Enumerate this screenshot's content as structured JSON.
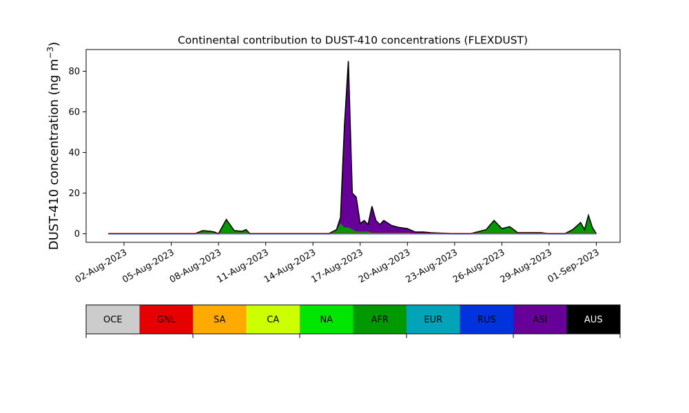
{
  "chart_data": {
    "type": "area",
    "title": "Continental contribution to DUST-410 concentrations (FLEXDUST)",
    "xlabel": "",
    "ylabel": "DUST-410 concentration (ng m⁻³)",
    "ylim": [
      -4.3,
      90
    ],
    "y_ticks": [
      0,
      20,
      40,
      60,
      80
    ],
    "x_ticks": [
      "02-Aug-2023",
      "05-Aug-2023",
      "08-Aug-2023",
      "11-Aug-2023",
      "14-Aug-2023",
      "17-Aug-2023",
      "20-Aug-2023",
      "23-Aug-2023",
      "26-Aug-2023",
      "29-Aug-2023",
      "01-Sep-2023"
    ],
    "stack_order": [
      "AFR",
      "ASI",
      "AUS"
    ],
    "x": [
      "2023-08-01",
      "2023-08-02",
      "2023-08-03",
      "2023-08-04",
      "2023-08-05",
      "2023-08-06",
      "2023-08-06 12:00",
      "2023-08-07",
      "2023-08-07 12:00",
      "2023-08-07 18:00",
      "2023-08-08",
      "2023-08-08 12:00",
      "2023-08-09",
      "2023-08-09 12:00",
      "2023-08-09 18:00",
      "2023-08-10",
      "2023-08-10 12:00",
      "2023-08-11",
      "2023-08-11 12:00",
      "2023-08-12",
      "2023-08-13",
      "2023-08-14",
      "2023-08-15",
      "2023-08-15 12:00",
      "2023-08-15 18:00",
      "2023-08-16",
      "2023-08-16 06:00",
      "2023-08-16 12:00",
      "2023-08-16 18:00",
      "2023-08-17",
      "2023-08-17 06:00",
      "2023-08-17 12:00",
      "2023-08-17 18:00",
      "2023-08-18",
      "2023-08-18 06:00",
      "2023-08-18 12:00",
      "2023-08-19",
      "2023-08-19 12:00",
      "2023-08-20",
      "2023-08-20 12:00",
      "2023-08-21",
      "2023-08-21 12:00",
      "2023-08-22",
      "2023-08-23",
      "2023-08-24",
      "2023-08-25",
      "2023-08-25 12:00",
      "2023-08-26",
      "2023-08-26 12:00",
      "2023-08-27",
      "2023-08-27 12:00",
      "2023-08-28",
      "2023-08-28 12:00",
      "2023-08-29",
      "2023-08-30",
      "2023-08-30 12:00",
      "2023-08-31",
      "2023-08-31 06:00",
      "2023-08-31 12:00",
      "2023-08-31 18:00",
      "2023-09-01"
    ],
    "series": [
      {
        "name": "AFR",
        "color": "#009900",
        "values": [
          0,
          0,
          0,
          0,
          0,
          0,
          0,
          1.3,
          1.0,
          0.6,
          0,
          7,
          1.5,
          1.2,
          2,
          0,
          0,
          0,
          0,
          0,
          0,
          0,
          0,
          1.5,
          5,
          3,
          3,
          2,
          1,
          1,
          1,
          1,
          0.5,
          0.5,
          0.5,
          0.5,
          0.5,
          0.5,
          0.5,
          0,
          0,
          0,
          0,
          0,
          0,
          2,
          6.5,
          2.5,
          3.5,
          0.5,
          0.5,
          0.5,
          0.5,
          0,
          0,
          2,
          5.5,
          2,
          9,
          3,
          0
        ]
      },
      {
        "name": "ASI",
        "color": "#660099",
        "values": [
          0,
          0,
          0,
          0,
          0,
          0,
          0,
          0.2,
          0.2,
          0.2,
          0,
          0,
          0,
          0,
          0,
          0,
          0,
          0,
          0,
          0,
          0,
          0,
          0,
          0.5,
          3,
          50,
          79,
          18,
          17,
          4,
          5.5,
          3.5,
          13,
          6,
          4,
          6,
          3.5,
          2.5,
          2,
          0.8,
          0.8,
          0.5,
          0.3,
          0,
          0,
          0,
          0,
          0,
          0,
          0,
          0,
          0,
          0,
          0,
          0,
          0,
          0,
          0,
          0,
          0,
          0
        ]
      },
      {
        "name": "AUS",
        "color": "#000000",
        "values": [
          0,
          0,
          0,
          0,
          0,
          0,
          0,
          0,
          0,
          0,
          0,
          0,
          0,
          0,
          0,
          0,
          0,
          0,
          0,
          0,
          0,
          0,
          0,
          0,
          0,
          0,
          3,
          0,
          0,
          0,
          0,
          0,
          0,
          0,
          0,
          0,
          0,
          0,
          0,
          0,
          0,
          0,
          0,
          0,
          0,
          0,
          0,
          0,
          0,
          0,
          0,
          0,
          0,
          0,
          0,
          0,
          0,
          0,
          0,
          0,
          0
        ]
      }
    ],
    "legend": [
      {
        "label": "OCE",
        "color": "#cccccc",
        "text_color": "#000000"
      },
      {
        "label": "GNL",
        "color": "#e60000",
        "text_color": "#000000"
      },
      {
        "label": "SA",
        "color": "#ffaa00",
        "text_color": "#000000"
      },
      {
        "label": "CA",
        "color": "#ccff00",
        "text_color": "#000000"
      },
      {
        "label": "NA",
        "color": "#00e600",
        "text_color": "#000000"
      },
      {
        "label": "AFR",
        "color": "#009900",
        "text_color": "#000000"
      },
      {
        "label": "EUR",
        "color": "#00a3b8",
        "text_color": "#000000"
      },
      {
        "label": "RUS",
        "color": "#0033dd",
        "text_color": "#000000"
      },
      {
        "label": "ASI",
        "color": "#660099",
        "text_color": "#000000"
      },
      {
        "label": "AUS",
        "color": "#000000",
        "text_color": "#ffffff"
      }
    ],
    "legend_placement": "bottom",
    "grid": false
  }
}
